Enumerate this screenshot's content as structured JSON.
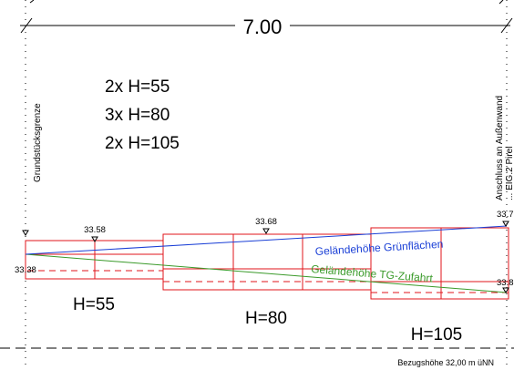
{
  "dimension": {
    "label": "7.00"
  },
  "step_counts": {
    "lines": [
      "2x H=55",
      "3x H=80",
      "2x H=105"
    ]
  },
  "side_labels": {
    "left": "Grundstücksgrenze",
    "right_line1": "Anschluss an Außenwand",
    "right_line2": "... EIG.2 Pirel"
  },
  "elevations": {
    "left_low": "33.38",
    "left_high": "33.58",
    "middle": "33.68",
    "right_high": "33.7",
    "right_low": "33.8"
  },
  "slopes": {
    "blue_label": "Geländehöhe Grünflächen",
    "green_label": "Geländehöhe TG-Zufahrt",
    "blue_color": "#1a3fd6",
    "green_color": "#3a9a2a"
  },
  "step_heights": {
    "h55": "H=55",
    "h80": "H=80",
    "h105": "H=105"
  },
  "reference": {
    "label": "Bezugshöhe 32,00 m üNN"
  },
  "colors": {
    "step_outline": "#e0161b",
    "line": "#000000"
  }
}
